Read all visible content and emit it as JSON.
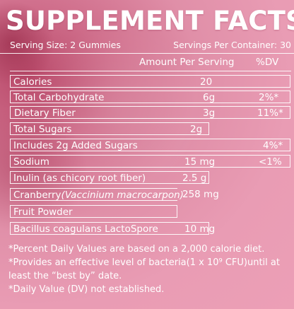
{
  "title": "SUPPLEMENT FACTS",
  "serving_size": "Serving Size: 2 Gummies",
  "servings_per_container": "Servings Per Container: 30",
  "headers": {
    "amount": "Amount Per Serving",
    "dv": "%DV"
  },
  "rows": [
    {
      "name": "Calories",
      "amount": "20",
      "dv": ""
    },
    {
      "name": "Total Carbohydrate",
      "amount": "6g",
      "dv": "2%*"
    },
    {
      "name": "Dietary Fiber",
      "amount": "3g",
      "dv": "11%*"
    },
    {
      "name": "Total Sugars",
      "amount": "2g",
      "dv": ""
    },
    {
      "name": "Includes 2g Added Sugars",
      "amount": "",
      "dv": "4%*"
    },
    {
      "name": "Sodium",
      "amount": "15 mg",
      "dv": "<1%"
    },
    {
      "name": "Inulin (as chicory root fiber)",
      "amount": "2.5 g",
      "dv": ""
    },
    {
      "name": "Cranberry",
      "name_italic": "(Vaccinium macrocarpon)",
      "amount": "258 mg",
      "dv": ""
    },
    {
      "name": "Fruit Powder",
      "amount": "",
      "dv": ""
    },
    {
      "name": "Bacillus coagulans LactoSpore",
      "amount": "10 mg",
      "dv": ""
    }
  ],
  "footnotes": [
    "*Percent Daily Values are based on a 2,000 calorie diet.",
    "*Provides an effective level of bacteria(1 x 10⁹ CFU)until at",
    "least the “best by” date.",
    "*Daily Value (DV) not established."
  ],
  "colors": {
    "background": "#e99cb4",
    "text": "#ffffff"
  }
}
